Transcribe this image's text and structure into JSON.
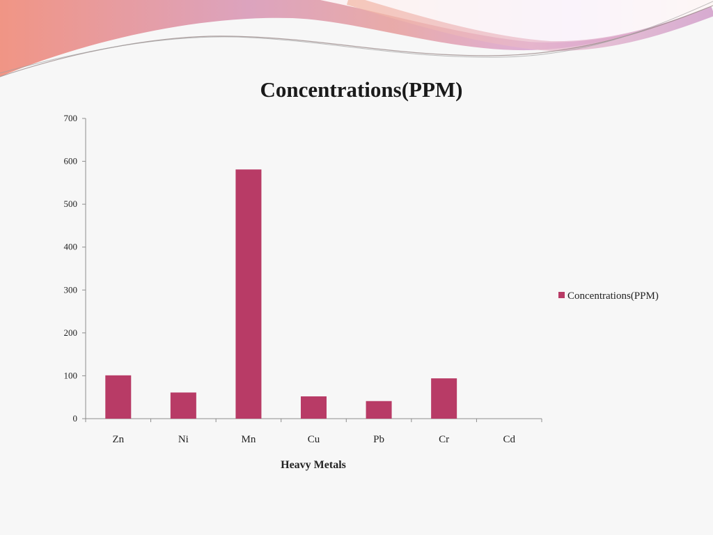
{
  "colors": {
    "bar": "#b83b66",
    "background": "#f7f7f7",
    "axis": "#8c8c8c"
  },
  "chart_data": {
    "type": "bar",
    "title": "Concentrations(PPM)",
    "xlabel": "Heavy Metals",
    "ylabel": "",
    "categories": [
      "Zn",
      "Ni",
      "Mn",
      "Cu",
      "Pb",
      "Cr",
      "Cd"
    ],
    "series": [
      {
        "name": "Concentrations(PPM)",
        "values": [
          101,
          61,
          581,
          52,
          41,
          94,
          0
        ]
      }
    ],
    "ylim": [
      0,
      700
    ],
    "yticks": [
      "0",
      "100",
      "200",
      "300",
      "400",
      "500",
      "600",
      "700"
    ],
    "grid": false,
    "legend": "right"
  }
}
